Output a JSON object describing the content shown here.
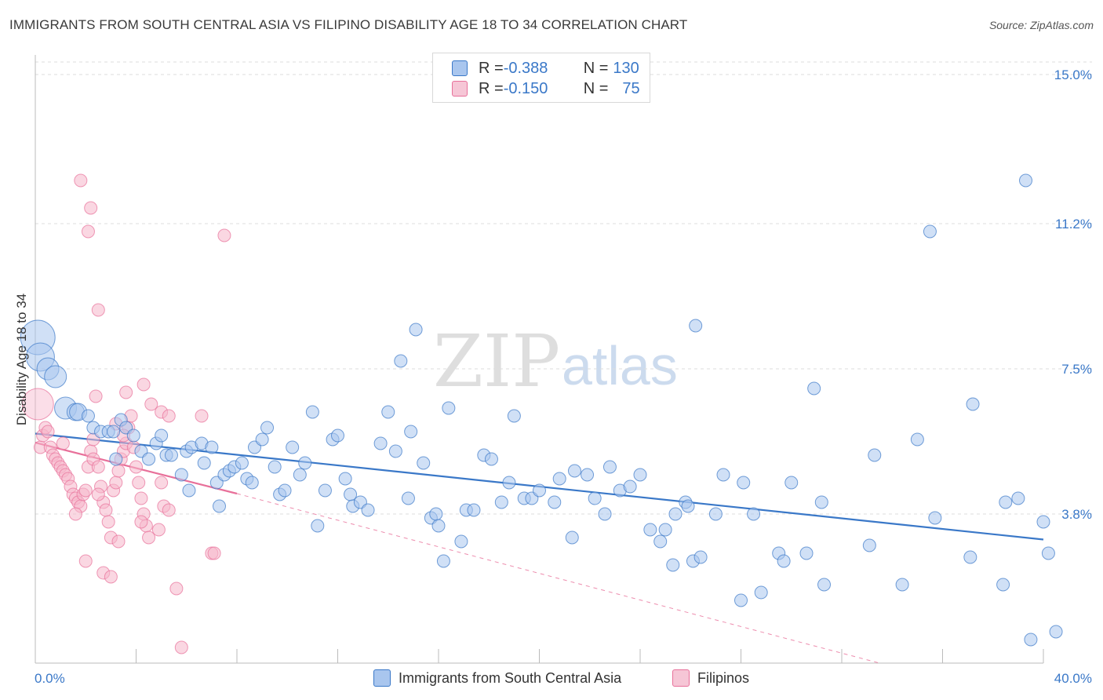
{
  "title": "IMMIGRANTS FROM SOUTH CENTRAL ASIA VS FILIPINO DISABILITY AGE 18 TO 34 CORRELATION CHART",
  "source": "Source: ZipAtlas.com",
  "watermark": {
    "zip": "ZIP",
    "atlas": "atlas"
  },
  "legend": {
    "rows": [
      {
        "r_label": "R = ",
        "r_value": "-0.388",
        "n_label": "N = ",
        "n_value": "130"
      },
      {
        "r_label": "R = ",
        "r_value": "-0.150",
        "n_label": "N = ",
        "n_value": "75"
      }
    ]
  },
  "colors": {
    "blue": "#3a78c8",
    "blue_fill": "#a9c6ee",
    "pink": "#e8709a",
    "pink_fill": "#f6b6cb",
    "grid": "#dddddd"
  },
  "chart_data": {
    "type": "scatter",
    "title": "IMMIGRANTS FROM SOUTH CENTRAL ASIA VS FILIPINO DISABILITY AGE 18 TO 34 CORRELATION CHART",
    "xlabel": "",
    "ylabel": "Disability Age 18 to 34",
    "xlim": [
      0,
      40
    ],
    "ylim": [
      0,
      15.5
    ],
    "x_tick_labels": [
      "0.0%",
      "40.0%"
    ],
    "y_ticks": [
      3.8,
      7.5,
      11.2,
      15.0
    ],
    "y_tick_labels": [
      "3.8%",
      "7.5%",
      "11.2%",
      "15.0%"
    ],
    "grid": "horizontal-dashed",
    "legend_position": "bottom",
    "series": [
      {
        "name": "Immigrants from South Central Asia",
        "color": "#3a78c8",
        "trend": {
          "x": [
            0,
            40
          ],
          "y": [
            5.85,
            3.15
          ]
        },
        "points": [
          [
            0.1,
            8.3
          ],
          [
            0.2,
            7.8
          ],
          [
            0.5,
            7.5
          ],
          [
            0.8,
            7.3
          ],
          [
            1.2,
            6.5
          ],
          [
            1.6,
            6.4
          ],
          [
            1.7,
            6.4
          ],
          [
            2.1,
            6.3
          ],
          [
            2.3,
            6.0
          ],
          [
            2.6,
            5.9
          ],
          [
            2.9,
            5.9
          ],
          [
            3.1,
            5.9
          ],
          [
            3.2,
            5.2
          ],
          [
            3.4,
            6.2
          ],
          [
            3.6,
            6.0
          ],
          [
            3.9,
            5.8
          ],
          [
            4.2,
            5.4
          ],
          [
            4.5,
            5.2
          ],
          [
            4.8,
            5.6
          ],
          [
            5.0,
            5.8
          ],
          [
            5.2,
            5.3
          ],
          [
            5.4,
            5.3
          ],
          [
            5.8,
            4.8
          ],
          [
            6.0,
            5.4
          ],
          [
            6.1,
            4.4
          ],
          [
            6.2,
            5.5
          ],
          [
            6.6,
            5.6
          ],
          [
            6.7,
            5.1
          ],
          [
            7.0,
            5.5
          ],
          [
            7.2,
            4.6
          ],
          [
            7.3,
            4.0
          ],
          [
            7.5,
            4.8
          ],
          [
            7.7,
            4.9
          ],
          [
            7.9,
            5.0
          ],
          [
            8.2,
            5.1
          ],
          [
            8.4,
            4.7
          ],
          [
            8.6,
            4.6
          ],
          [
            8.7,
            5.5
          ],
          [
            9.0,
            5.7
          ],
          [
            9.2,
            6.0
          ],
          [
            9.5,
            5.0
          ],
          [
            9.7,
            4.3
          ],
          [
            9.9,
            4.4
          ],
          [
            10.2,
            5.5
          ],
          [
            10.5,
            4.8
          ],
          [
            10.7,
            5.1
          ],
          [
            11.0,
            6.4
          ],
          [
            11.2,
            3.5
          ],
          [
            11.5,
            4.4
          ],
          [
            11.8,
            5.7
          ],
          [
            12.0,
            5.8
          ],
          [
            12.3,
            4.7
          ],
          [
            12.5,
            4.3
          ],
          [
            12.6,
            4.0
          ],
          [
            12.9,
            4.1
          ],
          [
            13.2,
            3.9
          ],
          [
            13.7,
            5.6
          ],
          [
            14.0,
            6.4
          ],
          [
            14.3,
            5.4
          ],
          [
            14.5,
            7.7
          ],
          [
            14.8,
            4.2
          ],
          [
            14.9,
            5.9
          ],
          [
            15.1,
            8.5
          ],
          [
            15.4,
            5.1
          ],
          [
            15.7,
            3.7
          ],
          [
            15.9,
            3.8
          ],
          [
            16.0,
            3.5
          ],
          [
            16.2,
            2.6
          ],
          [
            16.4,
            6.5
          ],
          [
            16.9,
            3.1
          ],
          [
            17.1,
            3.9
          ],
          [
            17.4,
            3.9
          ],
          [
            17.8,
            5.3
          ],
          [
            18.1,
            5.2
          ],
          [
            18.5,
            4.1
          ],
          [
            18.8,
            4.6
          ],
          [
            19.0,
            6.3
          ],
          [
            19.4,
            4.2
          ],
          [
            19.7,
            4.2
          ],
          [
            20.0,
            4.4
          ],
          [
            20.6,
            4.1
          ],
          [
            20.8,
            4.7
          ],
          [
            21.3,
            3.2
          ],
          [
            21.4,
            4.9
          ],
          [
            21.9,
            4.8
          ],
          [
            22.2,
            4.2
          ],
          [
            22.6,
            3.8
          ],
          [
            22.8,
            5.0
          ],
          [
            23.2,
            4.4
          ],
          [
            23.6,
            4.5
          ],
          [
            24.0,
            4.8
          ],
          [
            24.4,
            3.4
          ],
          [
            24.8,
            3.1
          ],
          [
            25.0,
            3.4
          ],
          [
            25.3,
            2.5
          ],
          [
            25.4,
            3.8
          ],
          [
            25.8,
            4.1
          ],
          [
            25.9,
            4.0
          ],
          [
            26.1,
            2.6
          ],
          [
            26.2,
            8.6
          ],
          [
            26.4,
            2.7
          ],
          [
            27.0,
            3.8
          ],
          [
            27.3,
            4.8
          ],
          [
            28.0,
            1.6
          ],
          [
            28.1,
            4.6
          ],
          [
            28.5,
            3.8
          ],
          [
            28.8,
            1.8
          ],
          [
            29.5,
            2.8
          ],
          [
            29.7,
            2.6
          ],
          [
            30.0,
            4.6
          ],
          [
            30.6,
            2.8
          ],
          [
            30.9,
            7.0
          ],
          [
            31.2,
            4.1
          ],
          [
            31.3,
            2.0
          ],
          [
            33.1,
            3.0
          ],
          [
            33.3,
            5.3
          ],
          [
            34.4,
            2.0
          ],
          [
            35.0,
            5.7
          ],
          [
            35.5,
            11.0
          ],
          [
            35.7,
            3.7
          ],
          [
            37.1,
            2.7
          ],
          [
            37.2,
            6.6
          ],
          [
            38.4,
            2.0
          ],
          [
            38.5,
            4.1
          ],
          [
            39.0,
            4.2
          ],
          [
            39.3,
            12.3
          ],
          [
            39.5,
            0.6
          ],
          [
            40.0,
            3.6
          ],
          [
            40.2,
            2.8
          ],
          [
            40.5,
            0.8
          ]
        ]
      },
      {
        "name": "Filipinos",
        "color": "#e8709a",
        "trend": {
          "x": [
            0,
            8
          ],
          "y": [
            5.62,
            4.32
          ]
        },
        "trend_extension": {
          "x": [
            8,
            33.5
          ],
          "y": [
            4.32,
            0
          ]
        },
        "points": [
          [
            0.1,
            6.6
          ],
          [
            0.2,
            5.5
          ],
          [
            0.3,
            5.8
          ],
          [
            0.4,
            6.0
          ],
          [
            0.5,
            5.9
          ],
          [
            0.6,
            5.5
          ],
          [
            0.7,
            5.3
          ],
          [
            0.8,
            5.2
          ],
          [
            0.9,
            5.1
          ],
          [
            1.0,
            5.0
          ],
          [
            1.1,
            4.9
          ],
          [
            1.2,
            4.8
          ],
          [
            1.3,
            4.7
          ],
          [
            1.4,
            4.5
          ],
          [
            1.5,
            4.3
          ],
          [
            1.6,
            4.2
          ],
          [
            1.7,
            4.1
          ],
          [
            1.8,
            4.0
          ],
          [
            1.9,
            4.3
          ],
          [
            2.0,
            4.4
          ],
          [
            2.1,
            5.0
          ],
          [
            2.2,
            5.4
          ],
          [
            2.3,
            5.2
          ],
          [
            2.4,
            6.8
          ],
          [
            2.5,
            5.0
          ],
          [
            2.6,
            4.5
          ],
          [
            2.7,
            4.1
          ],
          [
            2.8,
            3.9
          ],
          [
            2.9,
            3.6
          ],
          [
            3.0,
            3.2
          ],
          [
            3.1,
            4.4
          ],
          [
            3.2,
            4.6
          ],
          [
            3.3,
            4.9
          ],
          [
            3.4,
            5.2
          ],
          [
            3.5,
            5.4
          ],
          [
            3.6,
            5.6
          ],
          [
            3.7,
            6.0
          ],
          [
            3.8,
            6.3
          ],
          [
            3.9,
            5.5
          ],
          [
            4.0,
            5.0
          ],
          [
            4.1,
            4.6
          ],
          [
            4.2,
            4.2
          ],
          [
            4.3,
            3.8
          ],
          [
            4.4,
            3.5
          ],
          [
            4.5,
            3.2
          ],
          [
            1.8,
            12.3
          ],
          [
            2.2,
            11.6
          ],
          [
            2.1,
            11.0
          ],
          [
            7.5,
            10.9
          ],
          [
            2.5,
            9.0
          ],
          [
            3.6,
            6.9
          ],
          [
            4.3,
            7.1
          ],
          [
            4.6,
            6.6
          ],
          [
            5.0,
            6.4
          ],
          [
            5.3,
            6.3
          ],
          [
            6.6,
            6.3
          ],
          [
            3.2,
            6.1
          ],
          [
            1.1,
            5.6
          ],
          [
            2.3,
            5.7
          ],
          [
            3.5,
            5.8
          ],
          [
            5.0,
            4.6
          ],
          [
            5.1,
            4.0
          ],
          [
            5.3,
            3.9
          ],
          [
            4.2,
            3.6
          ],
          [
            4.9,
            3.4
          ],
          [
            5.6,
            1.9
          ],
          [
            5.8,
            0.4
          ],
          [
            7.0,
            2.8
          ],
          [
            7.1,
            2.8
          ],
          [
            2.0,
            2.6
          ],
          [
            2.7,
            2.3
          ],
          [
            3.0,
            2.2
          ],
          [
            3.3,
            3.1
          ],
          [
            1.6,
            3.8
          ],
          [
            2.5,
            4.3
          ]
        ]
      }
    ]
  }
}
